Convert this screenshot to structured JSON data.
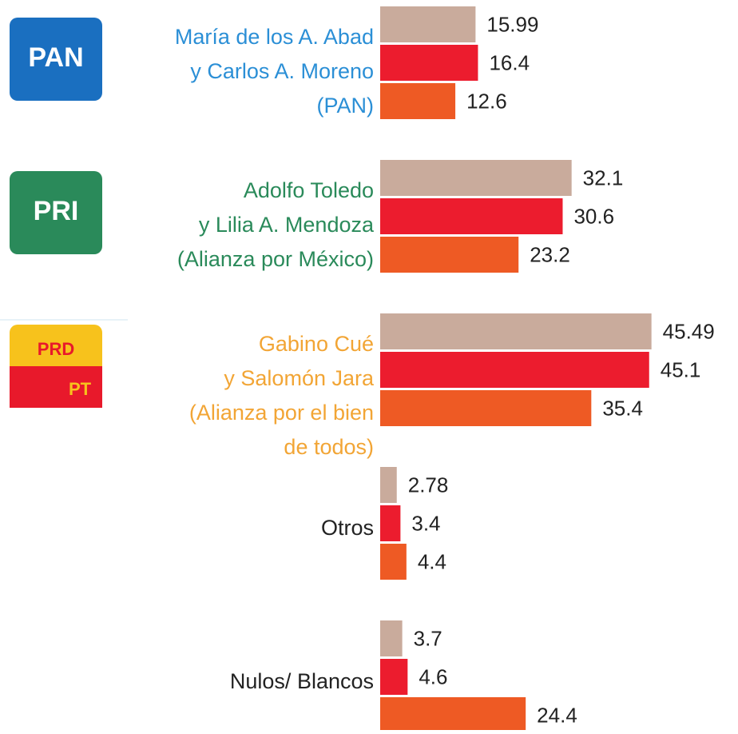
{
  "chart_data": {
    "type": "bar",
    "orientation": "horizontal",
    "categories": [
      [
        "María de los A. Abad",
        "y   Carlos A. Moreno",
        "(PAN)"
      ],
      [
        "Adolfo Toledo",
        "y   Lilia A. Mendoza",
        "(Alianza por México)"
      ],
      [
        "Gabino Cué",
        "y     Salomón Jara",
        "(Alianza por el bien",
        "de todos)"
      ],
      [
        "Otros"
      ],
      [
        "Nulos/ Blancos"
      ]
    ],
    "label_colors": [
      "#2b8fd6",
      "#2a8a5a",
      "#f2a535",
      "#222222",
      "#222222"
    ],
    "logos": [
      [
        "PAN"
      ],
      [
        "PRI"
      ],
      [
        "PRD",
        "PT"
      ],
      [],
      []
    ],
    "series": [
      {
        "color": "#c9ab9c",
        "values": [
          15.99,
          32.1,
          45.49,
          2.78,
          3.7
        ]
      },
      {
        "color": "#ec1c2e",
        "values": [
          16.4,
          30.6,
          45.1,
          3.4,
          4.6
        ]
      },
      {
        "color": "#ee5a24",
        "values": [
          12.6,
          23.2,
          35.4,
          4.4,
          24.4
        ]
      }
    ],
    "xlim": [
      0,
      60
    ]
  }
}
